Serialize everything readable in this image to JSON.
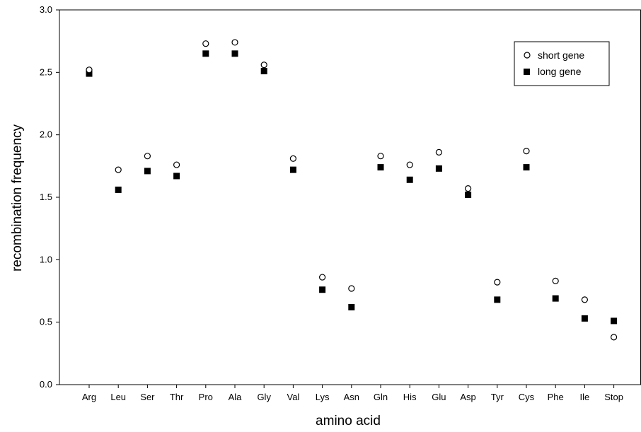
{
  "chart_data": {
    "type": "scatter",
    "title": "",
    "xlabel": "amino acid",
    "ylabel": "recombination frequency",
    "categories": [
      "Arg",
      "Leu",
      "Ser",
      "Thr",
      "Pro",
      "Ala",
      "Gly",
      "Val",
      "Lys",
      "Asn",
      "Gln",
      "His",
      "Glu",
      "Asp",
      "Tyr",
      "Cys",
      "Phe",
      "Ile",
      "Stop"
    ],
    "yticks": [
      "0.0",
      "0.5",
      "1.0",
      "1.5",
      "2.0",
      "2.5",
      "3.0"
    ],
    "ylim": [
      0,
      3.0
    ],
    "grid": false,
    "legend_position": "top-right",
    "series": [
      {
        "name": "short gene",
        "marker": "open-circle",
        "values": [
          2.52,
          1.72,
          1.83,
          1.76,
          2.73,
          2.74,
          2.56,
          1.81,
          0.86,
          0.77,
          1.83,
          1.76,
          1.86,
          1.57,
          0.82,
          1.87,
          0.83,
          0.68,
          0.38
        ]
      },
      {
        "name": "long gene",
        "marker": "filled-square",
        "values": [
          2.49,
          1.56,
          1.71,
          1.67,
          2.65,
          2.65,
          2.51,
          1.72,
          0.76,
          0.62,
          1.74,
          1.64,
          1.73,
          1.52,
          0.68,
          1.74,
          0.69,
          0.53,
          0.51
        ]
      }
    ]
  }
}
